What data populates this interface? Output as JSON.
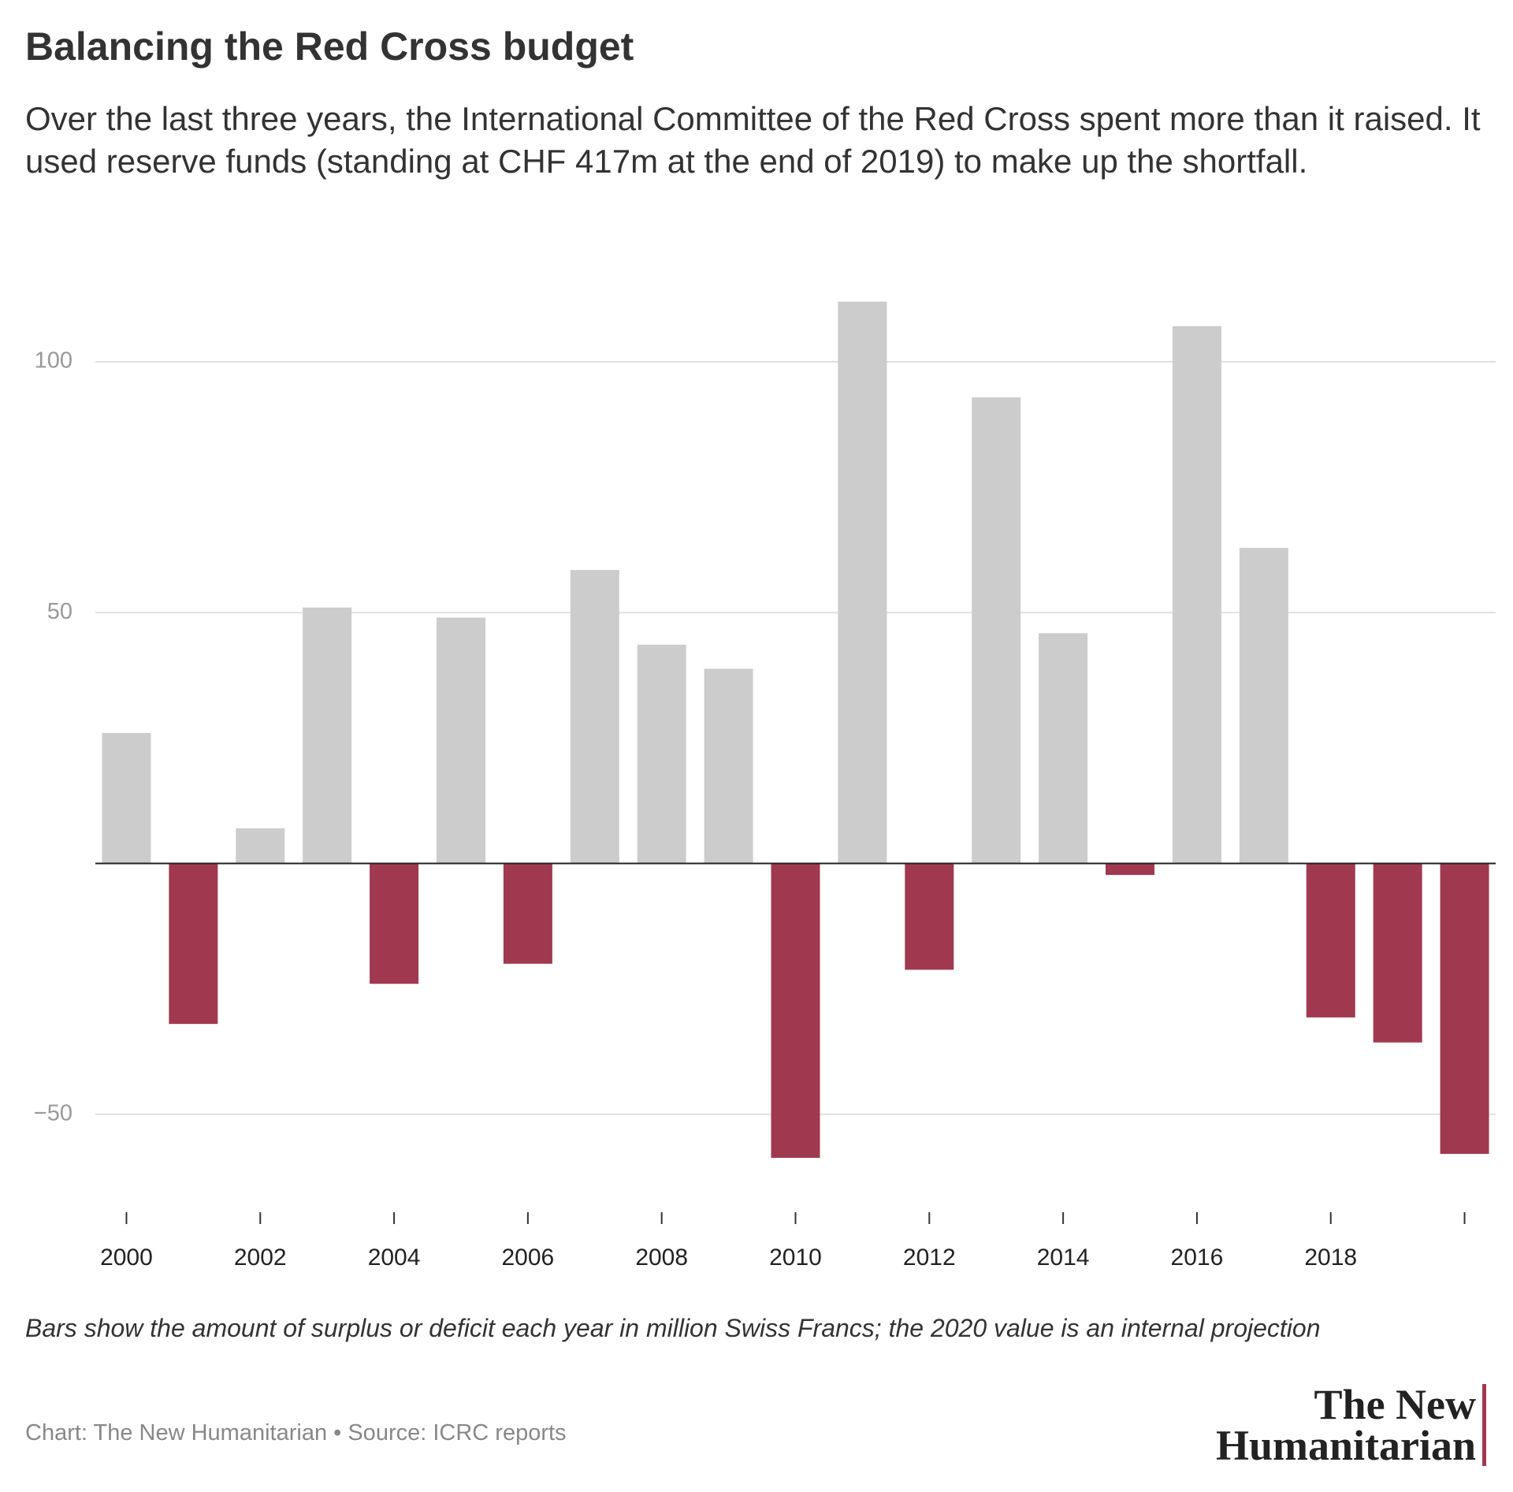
{
  "chart_data": {
    "type": "bar",
    "title": "Balancing the Red Cross budget",
    "subtitle": "Over the last three years, the International Committee of the Red Cross spent more than it raised. It used reserve funds (standing at CHF 417m at the end of 2019) to make up the shortfall.",
    "x": [
      2000,
      2001,
      2002,
      2003,
      2004,
      2005,
      2006,
      2007,
      2008,
      2009,
      2010,
      2011,
      2012,
      2013,
      2014,
      2015,
      2016,
      2017,
      2018,
      2019,
      2020
    ],
    "values": [
      26,
      -32,
      7,
      51,
      -24,
      49,
      -20,
      58.5,
      43.6,
      38.8,
      -58.7,
      112,
      -21.2,
      92.9,
      45.9,
      -2.3,
      107.1,
      62.9,
      -30.7,
      -35.7,
      -57.9
    ],
    "positive_color": "#cccccc",
    "negative_color": "#a0394f",
    "xlim": [
      1999.5,
      2020.5
    ],
    "xticks": [
      2000,
      2002,
      2004,
      2006,
      2008,
      2010,
      2012,
      2014,
      2016,
      2018,
      {
        "value": 2020,
        "label": null
      }
    ],
    "ylim": [
      -70,
      120
    ],
    "yticks": [
      {
        "value": -50,
        "label": "−50"
      },
      50,
      100
    ],
    "grid": true,
    "note": "Bars show the amount of surplus or deficit each year in million Swiss Francs; the 2020 value is an internal projection",
    "credit": "Chart: The New Humanitarian • Source: ICRC reports",
    "logo": [
      "The New",
      "Humanitarian"
    ]
  }
}
